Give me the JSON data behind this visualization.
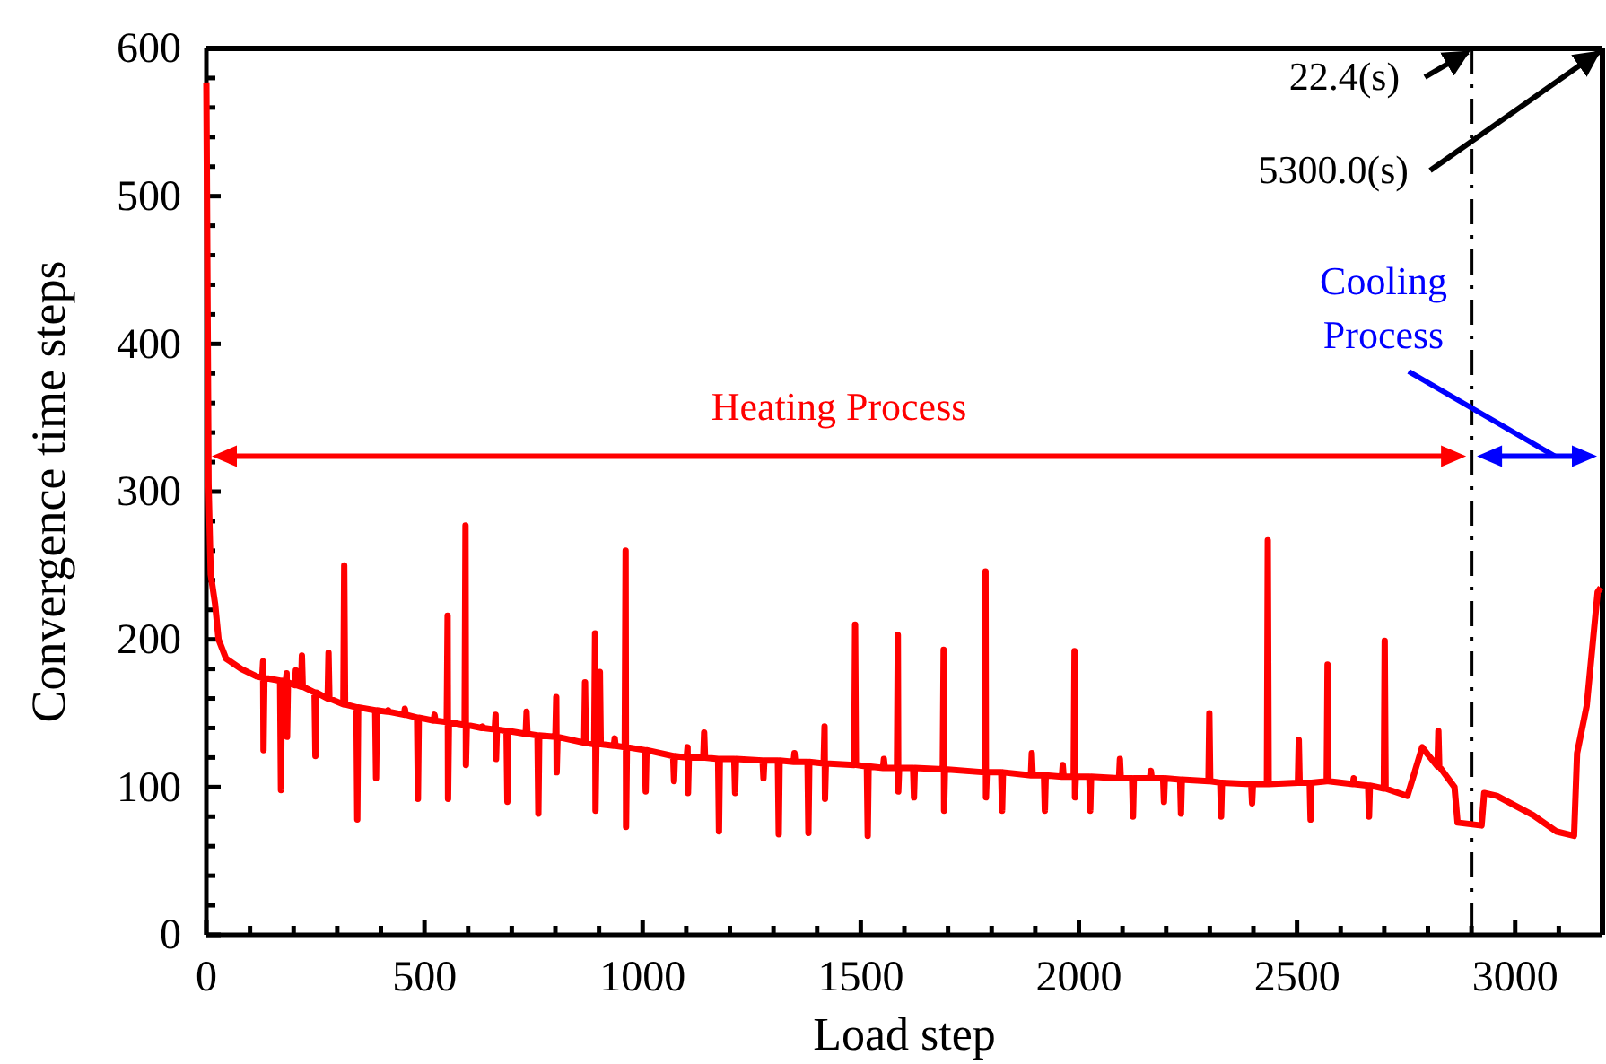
{
  "chart_data": {
    "type": "line",
    "xlabel": "Load step",
    "ylabel": "Convergence time steps",
    "xlim": [
      0,
      3200
    ],
    "ylim": [
      0,
      600
    ],
    "xticks": [
      0,
      {
        "value": 100,
        "label": null
      },
      {
        "value": 200,
        "label": null
      },
      {
        "value": 300,
        "label": null
      },
      {
        "value": 400,
        "label": null
      },
      500,
      {
        "value": 600,
        "label": null
      },
      {
        "value": 700,
        "label": null
      },
      {
        "value": 800,
        "label": null
      },
      {
        "value": 900,
        "label": null
      },
      1000,
      {
        "value": 1100,
        "label": null
      },
      {
        "value": 1200,
        "label": null
      },
      {
        "value": 1300,
        "label": null
      },
      {
        "value": 1400,
        "label": null
      },
      1500,
      {
        "value": 1600,
        "label": null
      },
      {
        "value": 1700,
        "label": null
      },
      {
        "value": 1800,
        "label": null
      },
      {
        "value": 1900,
        "label": null
      },
      2000,
      {
        "value": 2100,
        "label": null
      },
      {
        "value": 2200,
        "label": null
      },
      {
        "value": 2300,
        "label": null
      },
      {
        "value": 2400,
        "label": null
      },
      2500,
      {
        "value": 2600,
        "label": null
      },
      {
        "value": 2700,
        "label": null
      },
      {
        "value": 2800,
        "label": null
      },
      {
        "value": 2900,
        "label": null
      },
      3000,
      {
        "value": 3100,
        "label": null
      }
    ],
    "yticks": [
      0,
      {
        "value": 20,
        "label": null
      },
      {
        "value": 40,
        "label": null
      },
      {
        "value": 60,
        "label": null
      },
      {
        "value": 80,
        "label": null
      },
      100,
      {
        "value": 120,
        "label": null
      },
      {
        "value": 140,
        "label": null
      },
      {
        "value": 160,
        "label": null
      },
      {
        "value": 180,
        "label": null
      },
      200,
      {
        "value": 220,
        "label": null
      },
      {
        "value": 240,
        "label": null
      },
      {
        "value": 260,
        "label": null
      },
      {
        "value": 280,
        "label": null
      },
      300,
      {
        "value": 320,
        "label": null
      },
      {
        "value": 340,
        "label": null
      },
      {
        "value": 360,
        "label": null
      },
      {
        "value": 380,
        "label": null
      },
      400,
      {
        "value": 420,
        "label": null
      },
      {
        "value": 440,
        "label": null
      },
      {
        "value": 460,
        "label": null
      },
      {
        "value": 480,
        "label": null
      },
      500,
      {
        "value": 520,
        "label": null
      },
      {
        "value": 540,
        "label": null
      },
      {
        "value": 560,
        "label": null
      },
      {
        "value": 580,
        "label": null
      },
      600
    ],
    "grid": false,
    "marker": "none",
    "line_style": "solid",
    "series": [
      {
        "color": "#ff0000",
        "x": [
          0,
          5,
          10,
          20,
          28,
          45,
          80,
          115,
          128,
          130,
          131,
          133,
          169,
          171,
          173,
          182,
          184,
          185,
          187,
          203,
          205,
          207,
          217,
          219,
          221,
          248,
          250,
          252,
          278,
          280,
          282,
          314,
          316,
          318,
          344,
          346,
          348,
          387,
          389,
          391,
          415,
          417,
          419,
          453,
          455,
          457,
          483,
          485,
          487,
          521,
          523,
          525,
          551,
          553,
          554,
          556,
          592,
          594,
          595,
          597,
          631,
          633,
          635,
          661,
          663,
          664,
          666,
          688,
          690,
          692,
          732,
          734,
          736,
          759,
          761,
          763,
          800,
          802,
          803,
          805,
          866,
          868,
          870,
          889,
          891,
          892,
          894,
          900,
          902,
          904,
          934,
          936,
          938,
          959,
          961,
          962,
          964,
          1005,
          1007,
          1009,
          1070,
          1072,
          1074,
          1101,
          1103,
          1104,
          1106,
          1139,
          1141,
          1143,
          1173,
          1175,
          1177,
          1210,
          1212,
          1214,
          1275,
          1277,
          1279,
          1310,
          1312,
          1314,
          1346,
          1348,
          1350,
          1378,
          1380,
          1382,
          1415,
          1417,
          1418,
          1420,
          1485,
          1487,
          1489,
          1514,
          1516,
          1518,
          1551,
          1553,
          1555,
          1583,
          1585,
          1586,
          1588,
          1620,
          1622,
          1624,
          1688,
          1690,
          1691,
          1693,
          1784,
          1786,
          1787,
          1789,
          1822,
          1824,
          1826,
          1890,
          1892,
          1894,
          1920,
          1922,
          1924,
          1961,
          1963,
          1965,
          1988,
          1990,
          1991,
          1993,
          2024,
          2026,
          2028,
          2092,
          2094,
          2096,
          2122,
          2124,
          2126,
          2163,
          2165,
          2167,
          2193,
          2195,
          2197,
          2232,
          2234,
          2236,
          2297,
          2299,
          2301,
          2324,
          2326,
          2328,
          2395,
          2397,
          2399,
          2431,
          2433,
          2435,
          2502,
          2504,
          2506,
          2529,
          2531,
          2533,
          2568,
          2570,
          2572,
          2628,
          2630,
          2632,
          2663,
          2665,
          2667,
          2699,
          2701,
          2703,
          2753,
          2787,
          2800,
          2822,
          2824,
          2826,
          2861,
          2868,
          2923,
          2929,
          2958,
          3041,
          3094,
          3135,
          3142,
          3164,
          3189,
          3196
        ],
        "values": [
          577,
          305,
          244,
          224,
          200,
          187,
          180,
          175,
          174,
          185,
          125,
          174,
          172,
          98,
          172,
          171,
          177,
          134,
          171,
          169,
          179,
          169,
          168,
          189,
          168,
          164,
          121,
          164,
          160,
          191,
          160,
          156,
          250,
          156,
          154,
          78,
          154,
          152,
          106,
          152,
          151,
          152,
          151,
          149,
          153,
          149,
          147,
          92,
          147,
          145,
          149,
          145,
          144,
          216,
          92,
          144,
          142,
          277,
          115,
          142,
          140,
          141,
          140,
          139,
          149,
          119,
          139,
          138,
          90,
          138,
          136,
          151,
          136,
          135,
          82,
          135,
          134,
          161,
          110,
          134,
          130,
          171,
          130,
          129,
          204,
          84,
          129,
          129,
          178,
          129,
          128,
          133,
          128,
          127,
          260,
          73,
          127,
          125,
          97,
          125,
          121,
          104,
          121,
          120,
          127,
          96,
          120,
          120,
          137,
          120,
          119,
          70,
          119,
          119,
          96,
          119,
          118,
          106,
          118,
          118,
          68,
          118,
          117,
          123,
          117,
          117,
          69,
          117,
          116,
          141,
          92,
          116,
          115,
          210,
          115,
          114,
          67,
          114,
          113,
          119,
          113,
          113,
          203,
          97,
          113,
          113,
          93,
          113,
          112,
          193,
          84,
          112,
          110,
          246,
          93,
          110,
          110,
          84,
          110,
          108,
          123,
          108,
          108,
          84,
          108,
          107,
          115,
          107,
          107,
          192,
          93,
          107,
          107,
          84,
          107,
          106,
          119,
          106,
          106,
          80,
          106,
          106,
          111,
          106,
          106,
          90,
          106,
          105,
          82,
          105,
          104,
          150,
          104,
          103,
          80,
          103,
          102,
          89,
          102,
          102,
          267,
          102,
          103,
          132,
          103,
          103,
          78,
          103,
          104,
          183,
          104,
          102,
          106,
          102,
          101,
          80,
          101,
          99,
          199,
          99,
          94,
          127,
          122,
          114,
          138,
          114,
          100,
          76,
          74,
          96,
          94,
          81,
          70,
          67,
          123,
          155,
          232,
          235
        ]
      }
    ],
    "ref_lines": [
      {
        "axis": "x",
        "value": 2900,
        "line_style": "dashed",
        "color": "#000000"
      }
    ],
    "annotations": [
      "Heating Process",
      "Cooling Process",
      "22.4(s)",
      "5300.0(s)"
    ]
  }
}
